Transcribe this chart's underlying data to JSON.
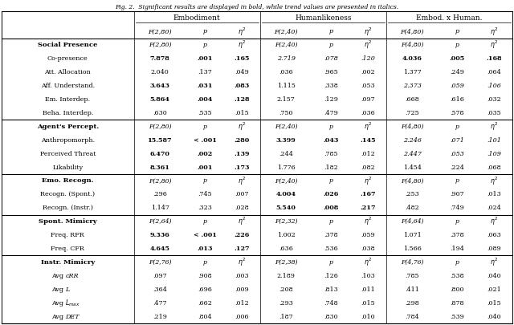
{
  "caption": "Fig. 2.  Significant results are displayed in bold, while trend values are presented in italics.",
  "sections": [
    {
      "section_label": "Social Presence",
      "section_F_emb": "F(2,80)",
      "section_F_hum": "F(2,40)",
      "section_F_int": "F(4,80)",
      "rows": [
        {
          "label": "Co-presence",
          "emb_F": "7.878",
          "emb_p": ".001",
          "emb_eta": ".165",
          "hum_F": "2.719",
          "hum_p": ".078",
          "hum_eta": ".120",
          "int_F": "4.036",
          "int_p": ".005",
          "int_eta": ".168",
          "emb_F_bold": true,
          "emb_p_bold": true,
          "emb_eta_bold": true,
          "hum_F_italic": true,
          "hum_p_italic": true,
          "hum_eta_italic": true,
          "int_F_bold": true,
          "int_p_bold": true,
          "int_eta_bold": true
        },
        {
          "label": "Att. Allocation",
          "emb_F": "2.040",
          "emb_p": ".137",
          "emb_eta": ".049",
          "hum_F": ".036",
          "hum_p": ".965",
          "hum_eta": ".002",
          "int_F": "1.377",
          "int_p": ".249",
          "int_eta": ".064",
          "emb_F_bold": false,
          "emb_p_bold": false,
          "emb_eta_bold": false,
          "hum_F_italic": false,
          "hum_p_italic": false,
          "hum_eta_italic": false,
          "int_F_bold": false,
          "int_p_bold": false,
          "int_eta_bold": false
        },
        {
          "label": "Aff. Understand.",
          "emb_F": "3.643",
          "emb_p": ".031",
          "emb_eta": ".083",
          "hum_F": "1.115",
          "hum_p": ".338",
          "hum_eta": ".053",
          "int_F": "2.373",
          "int_p": ".059",
          "int_eta": ".106",
          "emb_F_bold": true,
          "emb_p_bold": true,
          "emb_eta_bold": true,
          "hum_F_italic": false,
          "hum_p_italic": false,
          "hum_eta_italic": false,
          "int_F_italic": true,
          "int_p_italic": true,
          "int_eta_italic": true
        },
        {
          "label": "Em. Interdep.",
          "emb_F": "5.864",
          "emb_p": ".004",
          "emb_eta": ".128",
          "hum_F": "2.157",
          "hum_p": ".129",
          "hum_eta": ".097",
          "int_F": ".668",
          "int_p": ".616",
          "int_eta": ".032",
          "emb_F_bold": true,
          "emb_p_bold": true,
          "emb_eta_bold": true,
          "hum_F_italic": false,
          "hum_p_italic": false,
          "hum_eta_italic": false,
          "int_F_bold": false,
          "int_p_bold": false,
          "int_eta_bold": false
        },
        {
          "label": "Beha. Interdep.",
          "emb_F": ".630",
          "emb_p": ".535",
          "emb_eta": ".015",
          "hum_F": ".750",
          "hum_p": ".479",
          "hum_eta": ".036",
          "int_F": ".725",
          "int_p": ".578",
          "int_eta": ".035",
          "emb_F_bold": false,
          "emb_p_bold": false,
          "emb_eta_bold": false,
          "hum_F_italic": false,
          "hum_p_italic": false,
          "hum_eta_italic": false,
          "int_F_bold": false,
          "int_p_bold": false,
          "int_eta_bold": false
        }
      ]
    },
    {
      "section_label": "Agent's Percept.",
      "section_F_emb": "F(2,80)",
      "section_F_hum": "F(2,40)",
      "section_F_int": "F(4,80)",
      "rows": [
        {
          "label": "Anthropomorph.",
          "emb_F": "15.587",
          "emb_p": "< .001",
          "emb_eta": ".280",
          "hum_F": "3.399",
          "hum_p": ".043",
          "hum_eta": ".145",
          "int_F": "2.246",
          "int_p": ".071",
          "int_eta": ".101",
          "emb_F_bold": true,
          "emb_p_bold": true,
          "emb_eta_bold": true,
          "hum_F_bold": true,
          "hum_p_bold": true,
          "hum_eta_bold": true,
          "int_F_italic": true,
          "int_p_italic": true,
          "int_eta_italic": true
        },
        {
          "label": "Perceived Threat",
          "emb_F": "6.470",
          "emb_p": ".002",
          "emb_eta": ".139",
          "hum_F": ".244",
          "hum_p": ".785",
          "hum_eta": ".012",
          "int_F": "2.447",
          "int_p": ".053",
          "int_eta": ".109",
          "emb_F_bold": true,
          "emb_p_bold": true,
          "emb_eta_bold": true,
          "hum_F_italic": false,
          "hum_p_italic": false,
          "hum_eta_italic": false,
          "int_F_italic": true,
          "int_p_italic": true,
          "int_eta_italic": true
        },
        {
          "label": "Likability",
          "emb_F": "8.361",
          "emb_p": ".001",
          "emb_eta": ".173",
          "hum_F": "1.776",
          "hum_p": ".182",
          "hum_eta": ".082",
          "int_F": "1.454",
          "int_p": ".224",
          "int_eta": ".068",
          "emb_F_bold": true,
          "emb_p_bold": true,
          "emb_eta_bold": true,
          "hum_F_italic": false,
          "hum_p_italic": false,
          "hum_eta_italic": false,
          "int_F_bold": false,
          "int_p_bold": false,
          "int_eta_bold": false
        }
      ]
    },
    {
      "section_label": "Emo. Recogn.",
      "section_F_emb": "F(2,80)",
      "section_F_hum": "F(2,40)",
      "section_F_int": "F(4,80)",
      "rows": [
        {
          "label": "Recogn. (Spont.)",
          "emb_F": ".296",
          "emb_p": ".745",
          "emb_eta": ".007",
          "hum_F": "4.004",
          "hum_p": ".026",
          "hum_eta": ".167",
          "int_F": ".253",
          "int_p": ".907",
          "int_eta": ".013",
          "emb_F_bold": false,
          "emb_p_bold": false,
          "emb_eta_bold": false,
          "hum_F_bold": true,
          "hum_p_bold": true,
          "hum_eta_bold": true,
          "int_F_bold": false,
          "int_p_bold": false,
          "int_eta_bold": false
        },
        {
          "label": "Recogn. (Instr.)",
          "emb_F": "1.147",
          "emb_p": ".323",
          "emb_eta": ".028",
          "hum_F": "5.540",
          "hum_p": ".008",
          "hum_eta": ".217",
          "int_F": ".482",
          "int_p": ".749",
          "int_eta": ".024",
          "emb_F_bold": false,
          "emb_p_bold": false,
          "emb_eta_bold": false,
          "hum_F_bold": true,
          "hum_p_bold": true,
          "hum_eta_bold": true,
          "int_F_bold": false,
          "int_p_bold": false,
          "int_eta_bold": false
        }
      ]
    },
    {
      "section_label": "Spont. Mimicry",
      "section_F_emb": "F(2,64)",
      "section_F_hum": "F(2,32)",
      "section_F_int": "F(4,64)",
      "rows": [
        {
          "label": "Freq. RFR",
          "emb_F": "9.336",
          "emb_p": "< .001",
          "emb_eta": ".226",
          "hum_F": "1.002",
          "hum_p": ".378",
          "hum_eta": ".059",
          "int_F": "1.071",
          "int_p": ".378",
          "int_eta": ".063",
          "emb_F_bold": true,
          "emb_p_bold": true,
          "emb_eta_bold": true,
          "hum_F_italic": false,
          "hum_p_italic": false,
          "hum_eta_italic": false,
          "int_F_bold": false,
          "int_p_bold": false,
          "int_eta_bold": false
        },
        {
          "label": "Freq. CFR",
          "emb_F": "4.645",
          "emb_p": ".013",
          "emb_eta": ".127",
          "hum_F": ".636",
          "hum_p": ".536",
          "hum_eta": ".038",
          "int_F": "1.566",
          "int_p": ".194",
          "int_eta": ".089",
          "emb_F_bold": true,
          "emb_p_bold": true,
          "emb_eta_bold": true,
          "hum_F_italic": false,
          "hum_p_italic": false,
          "hum_eta_italic": false,
          "int_F_bold": false,
          "int_p_bold": false,
          "int_eta_bold": false
        }
      ]
    },
    {
      "section_label": "Instr. Mimicry",
      "section_F_emb": "F(2,76)",
      "section_F_hum": "F(2,38)",
      "section_F_int": "F(4,76)",
      "rows": [
        {
          "label": "Avg cRR",
          "emb_F": ".097",
          "emb_p": ".908",
          "emb_eta": ".003",
          "hum_F": "2.189",
          "hum_p": ".126",
          "hum_eta": ".103",
          "int_F": ".785",
          "int_p": ".538",
          "int_eta": ".040",
          "emb_F_bold": false,
          "emb_p_bold": false,
          "emb_eta_bold": false
        },
        {
          "label": "Avg L",
          "emb_F": ".364",
          "emb_p": ".696",
          "emb_eta": ".009",
          "hum_F": ".208",
          "hum_p": ".813",
          "hum_eta": ".011",
          "int_F": ".411",
          "int_p": ".800",
          "int_eta": ".021",
          "emb_F_bold": false,
          "emb_p_bold": false,
          "emb_eta_bold": false
        },
        {
          "label": "Avg L_max",
          "emb_F": ".477",
          "emb_p": ".662",
          "emb_eta": ".012",
          "hum_F": ".293",
          "hum_p": ".748",
          "hum_eta": ".015",
          "int_F": ".298",
          "int_p": ".878",
          "int_eta": ".015",
          "emb_F_bold": false,
          "emb_p_bold": false,
          "emb_eta_bold": false
        },
        {
          "label": "Avg DET",
          "emb_F": ".219",
          "emb_p": ".804",
          "emb_eta": ".006",
          "hum_F": ".187",
          "hum_p": ".830",
          "hum_eta": ".010",
          "int_F": ".784",
          "int_p": ".539",
          "int_eta": ".040",
          "emb_F_bold": false,
          "emb_p_bold": false,
          "emb_eta_bold": false
        }
      ]
    }
  ]
}
